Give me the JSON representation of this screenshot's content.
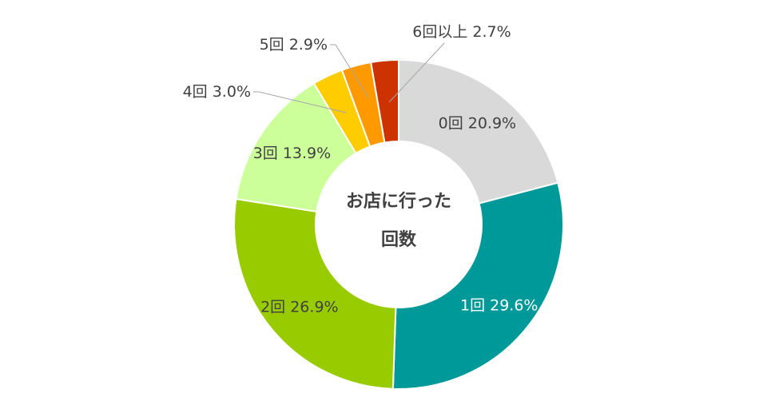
{
  "chart_data": {
    "type": "pie",
    "subtype": "donut",
    "center_title_lines": [
      "お店に行った",
      "回数"
    ],
    "legend": "none",
    "slices": [
      {
        "label": "0回",
        "value": 20.9,
        "display": "20.9%",
        "color": "#d9d9d9",
        "label_position": "inside"
      },
      {
        "label": "1回",
        "value": 29.6,
        "display": "29.6%",
        "color": "#009999",
        "label_position": "inside",
        "label_color": "light"
      },
      {
        "label": "2回",
        "value": 26.9,
        "display": "26.9%",
        "color": "#99cc00",
        "label_position": "inside"
      },
      {
        "label": "3回",
        "value": 13.9,
        "display": "13.9%",
        "color": "#ccff99",
        "label_position": "inside"
      },
      {
        "label": "4回",
        "value": 3.0,
        "display": "3.0%",
        "color": "#ffcc00",
        "label_position": "outside"
      },
      {
        "label": "5回",
        "value": 2.9,
        "display": "2.9%",
        "color": "#ff9900",
        "label_position": "outside"
      },
      {
        "label": "6回以上",
        "value": 2.7,
        "display": "2.7%",
        "color": "#cc3300",
        "label_position": "outside"
      }
    ]
  }
}
